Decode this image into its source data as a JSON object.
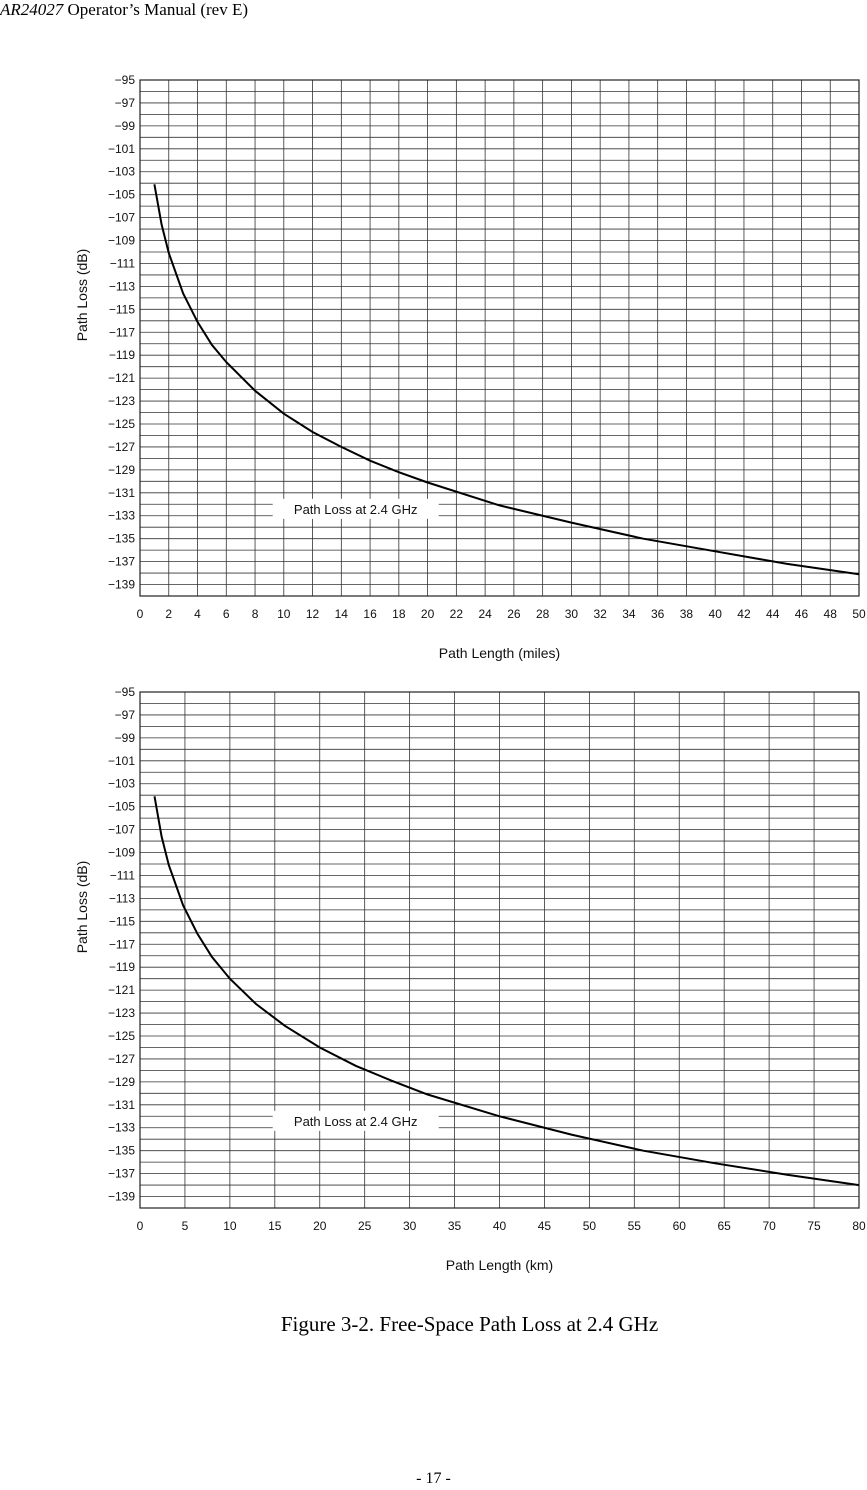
{
  "header": {
    "doc_id": "AR24027",
    "title_rest": " Operator’s Manual (rev E)"
  },
  "chart_data": [
    {
      "type": "line",
      "xlabel": "Path Length (miles)",
      "ylabel": "Path Loss (dB)",
      "xlim": [
        0,
        50
      ],
      "ylim": [
        -140,
        -95
      ],
      "x_ticks": [
        0,
        2,
        4,
        6,
        8,
        10,
        12,
        14,
        16,
        18,
        20,
        22,
        24,
        26,
        28,
        30,
        32,
        34,
        36,
        38,
        40,
        42,
        44,
        46,
        48,
        50
      ],
      "y_ticks": [
        -95,
        -97,
        -99,
        -101,
        -103,
        -105,
        -107,
        -109,
        -111,
        -113,
        -115,
        -117,
        -119,
        -121,
        -123,
        -125,
        -127,
        -129,
        -131,
        -133,
        -135,
        -137,
        -139
      ],
      "grid": true,
      "annotation": {
        "text": "Path Loss at 2.4 GHz",
        "x": 15,
        "y": -132.4
      },
      "series": [
        {
          "x": [
            1,
            1.5,
            2,
            3,
            4,
            5,
            6,
            8,
            10,
            12,
            14,
            16,
            18,
            20,
            25,
            30,
            35,
            40,
            45,
            50
          ],
          "values": [
            -104.1,
            -107.6,
            -110.1,
            -113.6,
            -116.1,
            -118.1,
            -119.6,
            -122.1,
            -124.1,
            -125.7,
            -127.0,
            -128.2,
            -129.2,
            -130.1,
            -132.1,
            -133.6,
            -135.0,
            -136.1,
            -137.2,
            -138.1
          ]
        }
      ]
    },
    {
      "type": "line",
      "xlabel": "Path Length (km)",
      "ylabel": "Path Loss (dB)",
      "xlim": [
        0,
        80
      ],
      "ylim": [
        -140,
        -95
      ],
      "x_ticks": [
        0,
        5,
        10,
        15,
        20,
        25,
        30,
        35,
        40,
        45,
        50,
        55,
        60,
        65,
        70,
        75,
        80
      ],
      "y_ticks": [
        -95,
        -97,
        -99,
        -101,
        -103,
        -105,
        -107,
        -109,
        -111,
        -113,
        -115,
        -117,
        -119,
        -121,
        -123,
        -125,
        -127,
        -129,
        -131,
        -133,
        -135,
        -137,
        -139
      ],
      "grid": true,
      "annotation": {
        "text": "Path Loss at 2.4 GHz",
        "x": 24,
        "y": -132.4
      },
      "series": [
        {
          "x": [
            1.61,
            2.4,
            3.2,
            4.8,
            6.4,
            8,
            10,
            12.9,
            16.1,
            20,
            24,
            28,
            32,
            40,
            48,
            56,
            64,
            72,
            80
          ],
          "values": [
            -104.1,
            -107.6,
            -110.1,
            -113.6,
            -116.1,
            -118.1,
            -120.0,
            -122.2,
            -124.1,
            -126.0,
            -127.6,
            -128.9,
            -130.1,
            -132.0,
            -133.6,
            -135.0,
            -136.1,
            -137.1,
            -138.0
          ]
        }
      ]
    }
  ],
  "caption": "Figure 3-2.  Free-Space Path Loss at 2.4 GHz",
  "page_number": "- 17 -"
}
